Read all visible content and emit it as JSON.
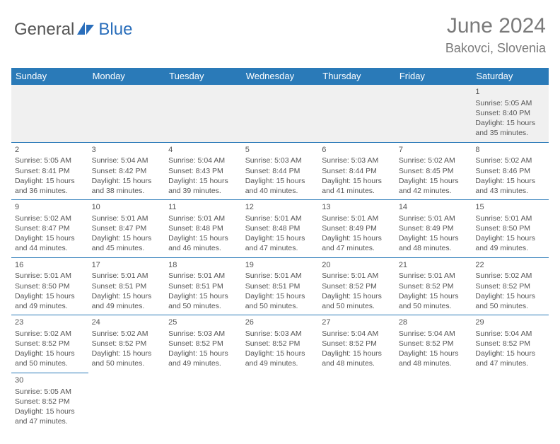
{
  "brand": {
    "part1": "General",
    "part2": "Blue"
  },
  "title": "June 2024",
  "location": "Bakovci, Slovenia",
  "colors": {
    "header_bg": "#2a7ab8",
    "header_fg": "#ffffff",
    "border": "#2a7ab8",
    "shade": "#f0f0f0",
    "text": "#555555",
    "title_text": "#7a7a7a",
    "logo_accent": "#2a6ebb"
  },
  "day_headers": [
    "Sunday",
    "Monday",
    "Tuesday",
    "Wednesday",
    "Thursday",
    "Friday",
    "Saturday"
  ],
  "weeks": [
    [
      null,
      null,
      null,
      null,
      null,
      null,
      {
        "n": "1",
        "sr": "Sunrise: 5:05 AM",
        "ss": "Sunset: 8:40 PM",
        "d1": "Daylight: 15 hours",
        "d2": "and 35 minutes."
      }
    ],
    [
      {
        "n": "2",
        "sr": "Sunrise: 5:05 AM",
        "ss": "Sunset: 8:41 PM",
        "d1": "Daylight: 15 hours",
        "d2": "and 36 minutes."
      },
      {
        "n": "3",
        "sr": "Sunrise: 5:04 AM",
        "ss": "Sunset: 8:42 PM",
        "d1": "Daylight: 15 hours",
        "d2": "and 38 minutes."
      },
      {
        "n": "4",
        "sr": "Sunrise: 5:04 AM",
        "ss": "Sunset: 8:43 PM",
        "d1": "Daylight: 15 hours",
        "d2": "and 39 minutes."
      },
      {
        "n": "5",
        "sr": "Sunrise: 5:03 AM",
        "ss": "Sunset: 8:44 PM",
        "d1": "Daylight: 15 hours",
        "d2": "and 40 minutes."
      },
      {
        "n": "6",
        "sr": "Sunrise: 5:03 AM",
        "ss": "Sunset: 8:44 PM",
        "d1": "Daylight: 15 hours",
        "d2": "and 41 minutes."
      },
      {
        "n": "7",
        "sr": "Sunrise: 5:02 AM",
        "ss": "Sunset: 8:45 PM",
        "d1": "Daylight: 15 hours",
        "d2": "and 42 minutes."
      },
      {
        "n": "8",
        "sr": "Sunrise: 5:02 AM",
        "ss": "Sunset: 8:46 PM",
        "d1": "Daylight: 15 hours",
        "d2": "and 43 minutes."
      }
    ],
    [
      {
        "n": "9",
        "sr": "Sunrise: 5:02 AM",
        "ss": "Sunset: 8:47 PM",
        "d1": "Daylight: 15 hours",
        "d2": "and 44 minutes."
      },
      {
        "n": "10",
        "sr": "Sunrise: 5:01 AM",
        "ss": "Sunset: 8:47 PM",
        "d1": "Daylight: 15 hours",
        "d2": "and 45 minutes."
      },
      {
        "n": "11",
        "sr": "Sunrise: 5:01 AM",
        "ss": "Sunset: 8:48 PM",
        "d1": "Daylight: 15 hours",
        "d2": "and 46 minutes."
      },
      {
        "n": "12",
        "sr": "Sunrise: 5:01 AM",
        "ss": "Sunset: 8:48 PM",
        "d1": "Daylight: 15 hours",
        "d2": "and 47 minutes."
      },
      {
        "n": "13",
        "sr": "Sunrise: 5:01 AM",
        "ss": "Sunset: 8:49 PM",
        "d1": "Daylight: 15 hours",
        "d2": "and 47 minutes."
      },
      {
        "n": "14",
        "sr": "Sunrise: 5:01 AM",
        "ss": "Sunset: 8:49 PM",
        "d1": "Daylight: 15 hours",
        "d2": "and 48 minutes."
      },
      {
        "n": "15",
        "sr": "Sunrise: 5:01 AM",
        "ss": "Sunset: 8:50 PM",
        "d1": "Daylight: 15 hours",
        "d2": "and 49 minutes."
      }
    ],
    [
      {
        "n": "16",
        "sr": "Sunrise: 5:01 AM",
        "ss": "Sunset: 8:50 PM",
        "d1": "Daylight: 15 hours",
        "d2": "and 49 minutes."
      },
      {
        "n": "17",
        "sr": "Sunrise: 5:01 AM",
        "ss": "Sunset: 8:51 PM",
        "d1": "Daylight: 15 hours",
        "d2": "and 49 minutes."
      },
      {
        "n": "18",
        "sr": "Sunrise: 5:01 AM",
        "ss": "Sunset: 8:51 PM",
        "d1": "Daylight: 15 hours",
        "d2": "and 50 minutes."
      },
      {
        "n": "19",
        "sr": "Sunrise: 5:01 AM",
        "ss": "Sunset: 8:51 PM",
        "d1": "Daylight: 15 hours",
        "d2": "and 50 minutes."
      },
      {
        "n": "20",
        "sr": "Sunrise: 5:01 AM",
        "ss": "Sunset: 8:52 PM",
        "d1": "Daylight: 15 hours",
        "d2": "and 50 minutes."
      },
      {
        "n": "21",
        "sr": "Sunrise: 5:01 AM",
        "ss": "Sunset: 8:52 PM",
        "d1": "Daylight: 15 hours",
        "d2": "and 50 minutes."
      },
      {
        "n": "22",
        "sr": "Sunrise: 5:02 AM",
        "ss": "Sunset: 8:52 PM",
        "d1": "Daylight: 15 hours",
        "d2": "and 50 minutes."
      }
    ],
    [
      {
        "n": "23",
        "sr": "Sunrise: 5:02 AM",
        "ss": "Sunset: 8:52 PM",
        "d1": "Daylight: 15 hours",
        "d2": "and 50 minutes."
      },
      {
        "n": "24",
        "sr": "Sunrise: 5:02 AM",
        "ss": "Sunset: 8:52 PM",
        "d1": "Daylight: 15 hours",
        "d2": "and 50 minutes."
      },
      {
        "n": "25",
        "sr": "Sunrise: 5:03 AM",
        "ss": "Sunset: 8:52 PM",
        "d1": "Daylight: 15 hours",
        "d2": "and 49 minutes."
      },
      {
        "n": "26",
        "sr": "Sunrise: 5:03 AM",
        "ss": "Sunset: 8:52 PM",
        "d1": "Daylight: 15 hours",
        "d2": "and 49 minutes."
      },
      {
        "n": "27",
        "sr": "Sunrise: 5:04 AM",
        "ss": "Sunset: 8:52 PM",
        "d1": "Daylight: 15 hours",
        "d2": "and 48 minutes."
      },
      {
        "n": "28",
        "sr": "Sunrise: 5:04 AM",
        "ss": "Sunset: 8:52 PM",
        "d1": "Daylight: 15 hours",
        "d2": "and 48 minutes."
      },
      {
        "n": "29",
        "sr": "Sunrise: 5:04 AM",
        "ss": "Sunset: 8:52 PM",
        "d1": "Daylight: 15 hours",
        "d2": "and 47 minutes."
      }
    ],
    [
      {
        "n": "30",
        "sr": "Sunrise: 5:05 AM",
        "ss": "Sunset: 8:52 PM",
        "d1": "Daylight: 15 hours",
        "d2": "and 47 minutes."
      },
      null,
      null,
      null,
      null,
      null,
      null
    ]
  ]
}
